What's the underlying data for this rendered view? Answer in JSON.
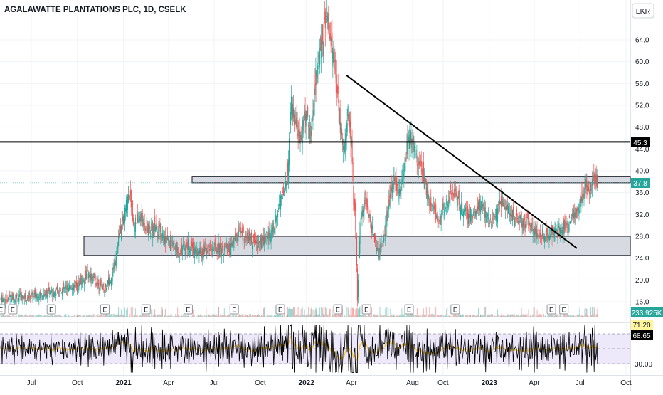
{
  "chart_data": {
    "type": "line",
    "title": "AGALAWATTE PLANTATIONS PLC, 1D, CSELK",
    "currency": "LKR",
    "y_ticks": [
      16.0,
      20.0,
      24.0,
      28.0,
      32.0,
      36.0,
      40.0,
      44.0,
      48.0,
      52.0,
      56.0,
      60.0,
      64.0
    ],
    "x_ticks": [
      "Jul",
      "Oct",
      "2021",
      "Apr",
      "Jul",
      "Oct",
      "2022",
      "Apr",
      "Aug",
      "Oct",
      "2023",
      "Apr",
      "Jul",
      "Oct"
    ],
    "price_series": [
      [
        "2020-05-01",
        16.5
      ],
      [
        "2020-06-01",
        16.8
      ],
      [
        "2020-07-01",
        17.0
      ],
      [
        "2020-08-01",
        17.5
      ],
      [
        "2020-09-01",
        18.2
      ],
      [
        "2020-10-01",
        19.0
      ],
      [
        "2020-10-20",
        21.0
      ],
      [
        "2020-11-10",
        19.5
      ],
      [
        "2020-11-25",
        18.5
      ],
      [
        "2020-12-10",
        21.0
      ],
      [
        "2020-12-22",
        27.5
      ],
      [
        "2021-01-05",
        33.0
      ],
      [
        "2021-01-12",
        37.0
      ],
      [
        "2021-01-22",
        30.0
      ],
      [
        "2021-02-05",
        31.5
      ],
      [
        "2021-02-20",
        29.0
      ],
      [
        "2021-03-05",
        30.0
      ],
      [
        "2021-03-20",
        28.0
      ],
      [
        "2021-04-05",
        26.5
      ],
      [
        "2021-04-20",
        25.2
      ],
      [
        "2021-05-10",
        26.5
      ],
      [
        "2021-06-01",
        25.2
      ],
      [
        "2021-06-20",
        25.8
      ],
      [
        "2021-07-10",
        26.0
      ],
      [
        "2021-08-01",
        25.5
      ],
      [
        "2021-08-20",
        29.0
      ],
      [
        "2021-09-05",
        27.5
      ],
      [
        "2021-09-25",
        26.5
      ],
      [
        "2021-10-10",
        27.5
      ],
      [
        "2021-10-25",
        29.5
      ],
      [
        "2021-11-05",
        32.0
      ],
      [
        "2021-11-15",
        36.0
      ],
      [
        "2021-11-25",
        40.0
      ],
      [
        "2021-12-02",
        52.0
      ],
      [
        "2021-12-10",
        48.0
      ],
      [
        "2021-12-20",
        46.0
      ],
      [
        "2022-01-01",
        51.0
      ],
      [
        "2022-01-10",
        47.0
      ],
      [
        "2022-01-20",
        57.0
      ],
      [
        "2022-01-28",
        62.0
      ],
      [
        "2022-02-05",
        66.0
      ],
      [
        "2022-02-12",
        68.0
      ],
      [
        "2022-02-20",
        63.0
      ],
      [
        "2022-03-01",
        57.0
      ],
      [
        "2022-03-10",
        49.0
      ],
      [
        "2022-03-18",
        43.0
      ],
      [
        "2022-03-25",
        51.0
      ],
      [
        "2022-04-01",
        45.0
      ],
      [
        "2022-04-05",
        35.0
      ],
      [
        "2022-04-10",
        29.0
      ],
      [
        "2022-04-13",
        16.0
      ],
      [
        "2022-04-18",
        30.0
      ],
      [
        "2022-04-28",
        35.0
      ],
      [
        "2022-05-10",
        30.0
      ],
      [
        "2022-05-25",
        25.0
      ],
      [
        "2022-06-05",
        28.0
      ],
      [
        "2022-06-15",
        35.0
      ],
      [
        "2022-06-25",
        38.0
      ],
      [
        "2022-07-05",
        36.0
      ],
      [
        "2022-07-15",
        40.0
      ],
      [
        "2022-07-25",
        47.0
      ],
      [
        "2022-08-01",
        46.0
      ],
      [
        "2022-08-10",
        42.0
      ],
      [
        "2022-08-20",
        40.0
      ],
      [
        "2022-09-01",
        35.0
      ],
      [
        "2022-09-20",
        31.0
      ],
      [
        "2022-10-05",
        33.0
      ],
      [
        "2022-10-20",
        37.0
      ],
      [
        "2022-11-05",
        33.5
      ],
      [
        "2022-11-25",
        32.0
      ],
      [
        "2022-12-15",
        33.5
      ],
      [
        "2023-01-05",
        31.0
      ],
      [
        "2023-01-25",
        34.0
      ],
      [
        "2023-02-15",
        32.0
      ],
      [
        "2023-03-05",
        31.0
      ],
      [
        "2023-03-25",
        30.0
      ],
      [
        "2023-04-10",
        28.5
      ],
      [
        "2023-04-25",
        28.0
      ],
      [
        "2023-05-05",
        28.5
      ],
      [
        "2023-05-25",
        29.5
      ],
      [
        "2023-06-10",
        30.5
      ],
      [
        "2023-06-25",
        33.0
      ],
      [
        "2023-07-05",
        35.0
      ],
      [
        "2023-07-12",
        37.5
      ],
      [
        "2023-07-20",
        36.5
      ],
      [
        "2023-07-28",
        38.5
      ],
      [
        "2023-08-05",
        37.8
      ]
    ],
    "volume_label": "233.925K",
    "rsi": {
      "levels": [
        70,
        50,
        30
      ],
      "scale_label": "30.00",
      "value_badge": "71.20",
      "last_value": "68.65"
    },
    "levels": [
      {
        "name": "horizontal-resistance",
        "value": 45.3,
        "label": "45.3"
      },
      {
        "name": "last-price",
        "value": 37.8,
        "label": "37.8"
      }
    ],
    "zones": [
      {
        "name": "resistance-zone",
        "from": "2021-07-01",
        "to": "2023-10-31",
        "low": 37.8,
        "high": 39.0
      },
      {
        "name": "support-zone",
        "from": "2020-11-15",
        "to": "2023-10-31",
        "low": 24.5,
        "high": 28.0
      }
    ],
    "trendline": {
      "from": [
        "2022-03-22",
        57.5
      ],
      "to": [
        "2023-06-25",
        25.8
      ]
    },
    "earnings_dates": [
      "2020-05-01",
      "2020-05-25",
      "2020-08-10",
      "2020-11-25",
      "2021-02-15",
      "2021-05-10",
      "2021-08-10",
      "2021-11-10",
      "2022-03-05",
      "2022-05-01",
      "2022-07-25",
      "2022-10-25",
      "2023-05-05",
      "2023-05-30"
    ],
    "earnings_label": "E",
    "colors": {
      "up": "#26a69a",
      "down": "#ef5350",
      "accent": "#000000",
      "rsi_line": "#000000",
      "rsi_ma": "#f7c531",
      "rsi_fill": "#eee8fb",
      "price_tag": "#26a69a"
    }
  }
}
